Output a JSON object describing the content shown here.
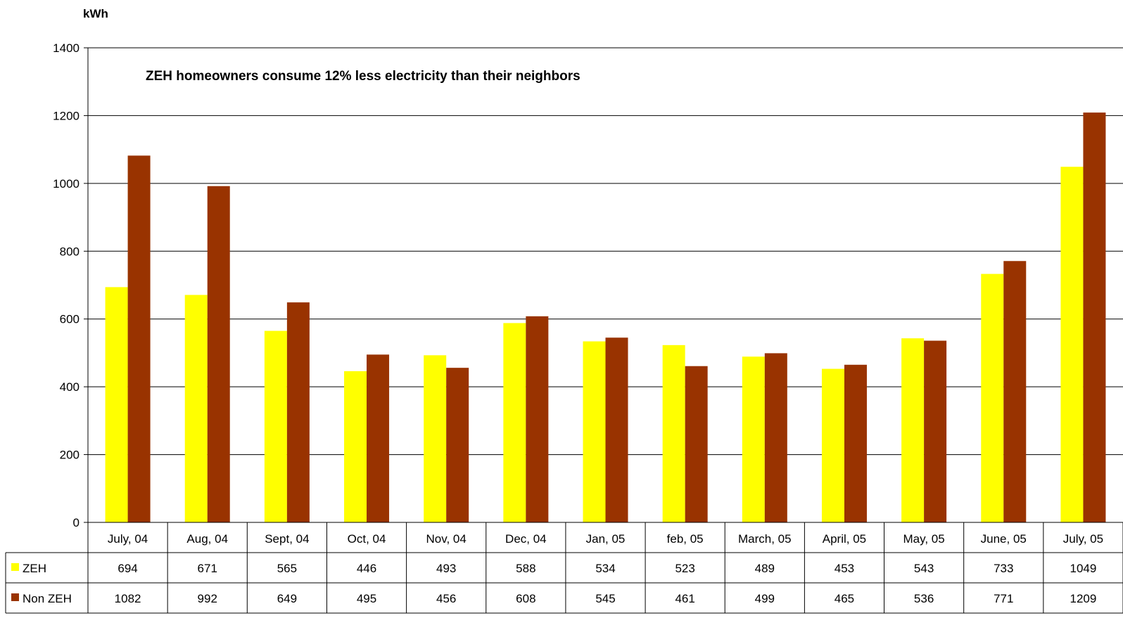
{
  "chart_data": {
    "type": "bar",
    "title": "ZEH homeowners consume 12% less electricity than their neighbors",
    "ylabel": "kWh",
    "xlabel": "",
    "ylim": [
      0,
      1400
    ],
    "yticks": [
      0,
      200,
      400,
      600,
      800,
      1000,
      1200,
      1400
    ],
    "grid": true,
    "legend": "data-table-left",
    "categories": [
      "July, 04",
      "Aug, 04",
      "Sept, 04",
      "Oct, 04",
      "Nov, 04",
      "Dec, 04",
      "Jan, 05",
      "feb, 05",
      "March, 05",
      "April, 05",
      "May, 05",
      "June, 05",
      "July, 05"
    ],
    "series": [
      {
        "name": "ZEH",
        "color": "#FFFF00",
        "values": [
          694,
          671,
          565,
          446,
          493,
          588,
          534,
          523,
          489,
          453,
          543,
          733,
          1049
        ]
      },
      {
        "name": "Non ZEH",
        "color": "#993300",
        "values": [
          1082,
          992,
          649,
          495,
          456,
          608,
          545,
          461,
          499,
          465,
          536,
          771,
          1209
        ]
      }
    ]
  }
}
